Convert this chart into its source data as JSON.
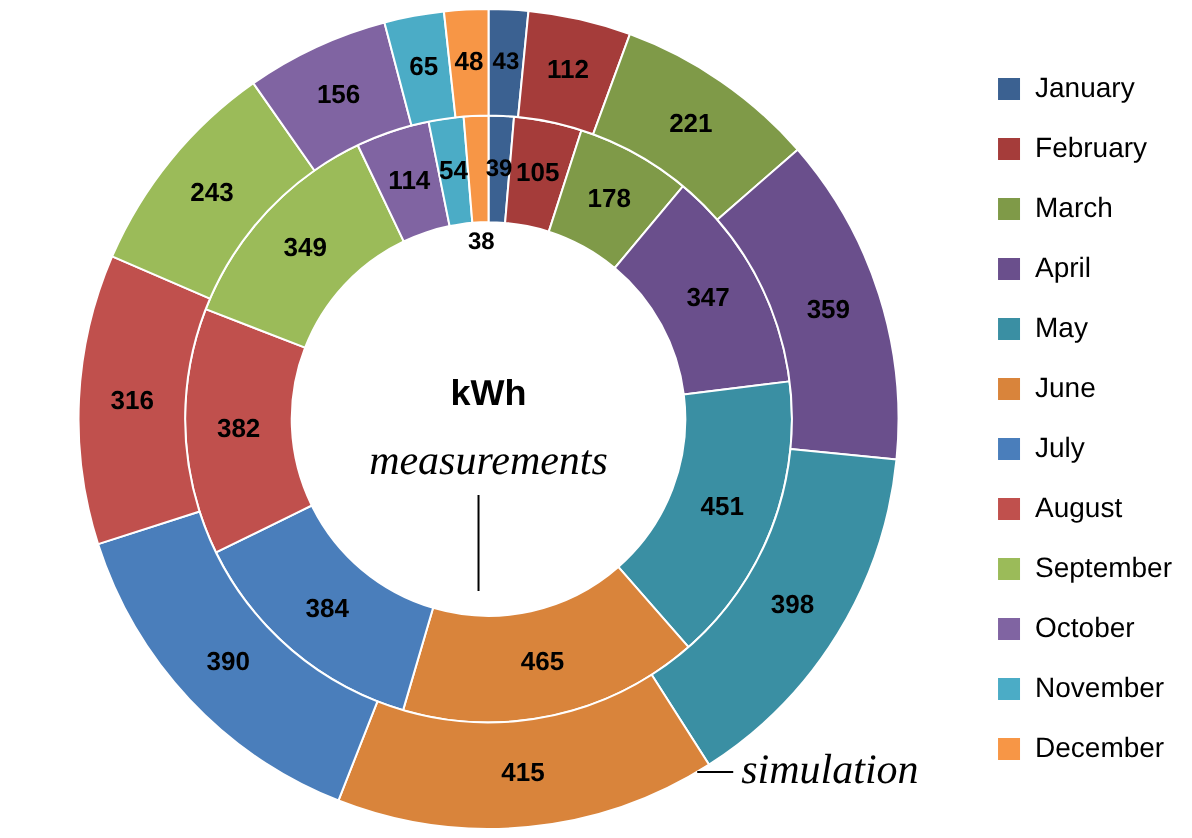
{
  "chart_data": {
    "type": "donut",
    "title": "kWh",
    "categories": [
      "January",
      "February",
      "March",
      "April",
      "May",
      "June",
      "July",
      "August",
      "September",
      "October",
      "November",
      "December"
    ],
    "colors": [
      "#3b6191",
      "#a53c3a",
      "#7f9a48",
      "#6a4f8c",
      "#3a8fa3",
      "#d9843b",
      "#4a7ebb",
      "#c0504d",
      "#9bbb59",
      "#8064a2",
      "#4bacc6",
      "#f79646"
    ],
    "series": [
      {
        "name": "simulation",
        "values": [
          43,
          112,
          221,
          359,
          398,
          415,
          390,
          316,
          243,
          156,
          65,
          48
        ]
      },
      {
        "name": "measurements",
        "values": [
          39,
          105,
          178,
          347,
          451,
          465,
          384,
          382,
          349,
          114,
          54,
          38
        ]
      }
    ],
    "data_labels": true,
    "legend": "right"
  }
}
